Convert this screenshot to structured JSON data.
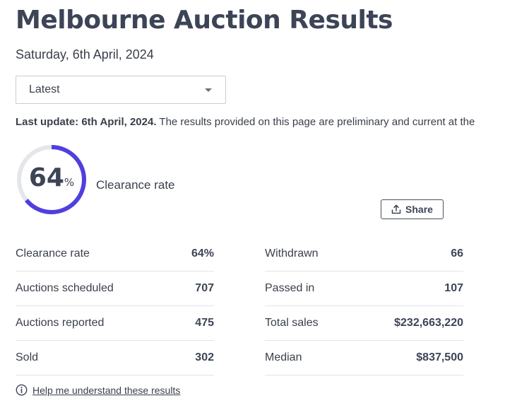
{
  "page": {
    "title": "Melbourne Auction Results",
    "date": "Saturday, 6th April, 2024"
  },
  "filter": {
    "selected": "Latest"
  },
  "update": {
    "label": "Last update: 6th April, 2024.",
    "text": "The results provided on this page are preliminary and current at the"
  },
  "gauge": {
    "value": "64",
    "unit": "%",
    "fraction": 0.64,
    "label": "Clearance rate",
    "color": "#4f3fe0",
    "track_color": "#e4e6ea"
  },
  "share": {
    "label": "Share",
    "icon": "upload-icon"
  },
  "stats": {
    "left": [
      {
        "label": "Clearance rate",
        "value": "64%"
      },
      {
        "label": "Auctions scheduled",
        "value": "707"
      },
      {
        "label": "Auctions reported",
        "value": "475"
      },
      {
        "label": "Sold",
        "value": "302"
      }
    ],
    "right": [
      {
        "label": "Withdrawn",
        "value": "66"
      },
      {
        "label": "Passed in",
        "value": "107"
      },
      {
        "label": "Total sales",
        "value": "$232,663,220"
      },
      {
        "label": "Median",
        "value": "$837,500"
      }
    ]
  },
  "help": {
    "label": "Help me understand these results",
    "icon": "info-icon"
  }
}
